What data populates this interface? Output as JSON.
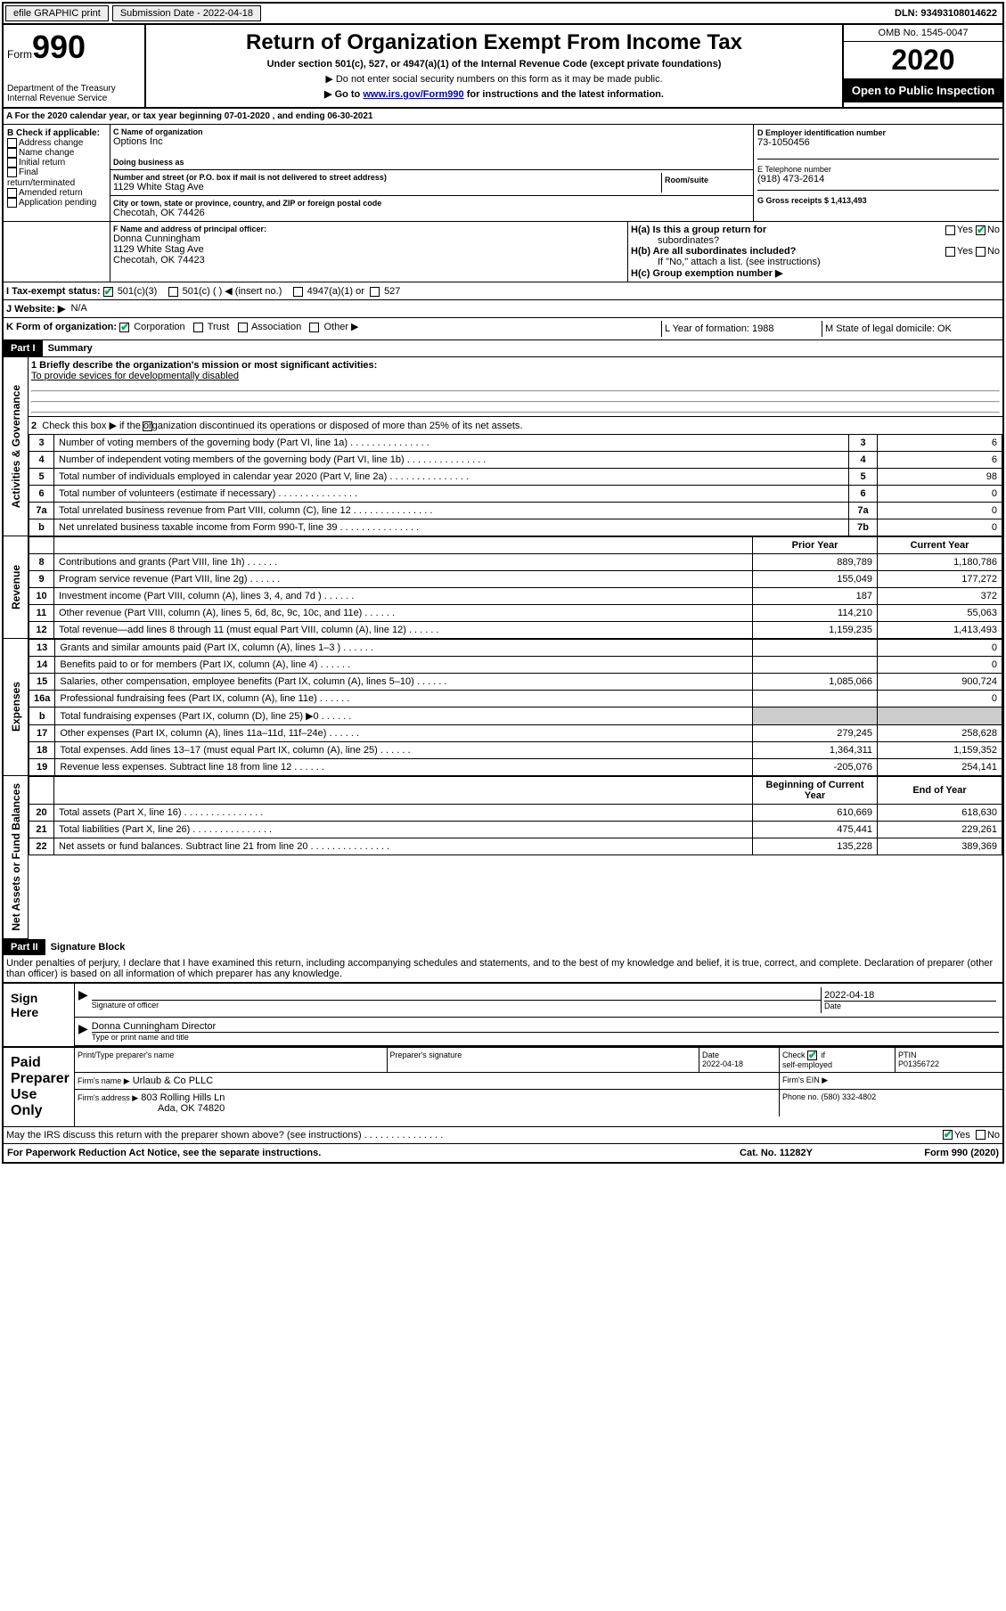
{
  "topbar": {
    "efile": "efile GRAPHIC print",
    "submission_label": "Submission Date - 2022-04-18",
    "dln_label": "DLN: 93493108014622"
  },
  "header": {
    "form_label": "Form",
    "form_number": "990",
    "dept": "Department of the Treasury",
    "irs": "Internal Revenue Service",
    "title": "Return of Organization Exempt From Income Tax",
    "subtitle": "Under section 501(c), 527, or 4947(a)(1) of the Internal Revenue Code (except private foundations)",
    "instr1": "▶ Do not enter social security numbers on this form as it may be made public.",
    "instr2_pre": "▶ Go to ",
    "instr2_link": "www.irs.gov/Form990",
    "instr2_post": " for instructions and the latest information.",
    "omb": "OMB No. 1545-0047",
    "year": "2020",
    "inspection": "Open to Public Inspection"
  },
  "line_a": "For the 2020 calendar year, or tax year beginning 07-01-2020   , and ending 06-30-2021",
  "box_b": {
    "title": "B Check if applicable:",
    "opts": [
      "Address change",
      "Name change",
      "Initial return",
      "Final return/terminated",
      "Amended return",
      "Application pending"
    ]
  },
  "box_c": {
    "name_label": "C Name of organization",
    "name": "Options Inc",
    "dba_label": "Doing business as",
    "addr_label": "Number and street (or P.O. box if mail is not delivered to street address)",
    "room_label": "Room/suite",
    "addr": "1129 White Stag Ave",
    "city_label": "City or town, state or province, country, and ZIP or foreign postal code",
    "city": "Checotah, OK  74426"
  },
  "box_d": {
    "ein_label": "D Employer identification number",
    "ein": "73-1050456",
    "phone_label": "E Telephone number",
    "phone": "(918) 473-2614",
    "gross_label": "G Gross receipts $ 1,413,493"
  },
  "box_f": {
    "label": "F  Name and address of principal officer:",
    "name": "Donna Cunningham",
    "addr1": "1129 White Stag Ave",
    "addr2": "Checotah, OK  74423"
  },
  "box_h": {
    "ha_label": "H(a)  Is this a group return for",
    "ha_label2": "subordinates?",
    "hb_label": "H(b)  Are all subordinates included?",
    "hb_note": "If \"No,\" attach a list. (see instructions)",
    "hc_label": "H(c)  Group exemption number ▶",
    "yes": "Yes",
    "no": "No"
  },
  "line_i": {
    "label": "I  Tax-exempt status:",
    "opt1": "501(c)(3)",
    "opt2": "501(c) (   ) ◀ (insert no.)",
    "opt3": "4947(a)(1) or",
    "opt4": "527"
  },
  "line_j": {
    "label": "J  Website: ▶",
    "val": "N/A"
  },
  "line_k": {
    "label": "K Form of organization:",
    "opts": [
      "Corporation",
      "Trust",
      "Association",
      "Other ▶"
    ],
    "l_label": "L Year of formation: 1988",
    "m_label": "M State of legal domicile: OK"
  },
  "parts": {
    "part1": "Part I",
    "part1_title": "Summary",
    "part2": "Part II",
    "part2_title": "Signature Block"
  },
  "sidebar": {
    "gov": "Activities & Governance",
    "rev": "Revenue",
    "exp": "Expenses",
    "net": "Net Assets or Fund Balances"
  },
  "summary": {
    "l1_label": "1  Briefly describe the organization's mission or most significant activities:",
    "l1_val": "To provide sevices for developmentally disabled",
    "l2": "Check this box ▶         if the organization discontinued its operations or disposed of more than 25% of its net assets.",
    "rows_single": [
      {
        "n": "3",
        "desc": "Number of voting members of the governing body (Part VI, line 1a)",
        "ans": "3",
        "val": "6"
      },
      {
        "n": "4",
        "desc": "Number of independent voting members of the governing body (Part VI, line 1b)",
        "ans": "4",
        "val": "6"
      },
      {
        "n": "5",
        "desc": "Total number of individuals employed in calendar year 2020 (Part V, line 2a)",
        "ans": "5",
        "val": "98"
      },
      {
        "n": "6",
        "desc": "Total number of volunteers (estimate if necessary)",
        "ans": "6",
        "val": "0"
      },
      {
        "n": "7a",
        "desc": "Total unrelated business revenue from Part VIII, column (C), line 12",
        "ans": "7a",
        "val": "0"
      },
      {
        "n": "b",
        "desc": "Net unrelated business taxable income from Form 990-T, line 39",
        "ans": "7b",
        "val": "0"
      }
    ],
    "col_headers": {
      "prior": "Prior Year",
      "current": "Current Year",
      "begin": "Beginning of Current Year",
      "end": "End of Year"
    },
    "rev_rows": [
      {
        "n": "8",
        "desc": "Contributions and grants (Part VIII, line 1h)",
        "c1": "889,789",
        "c2": "1,180,786"
      },
      {
        "n": "9",
        "desc": "Program service revenue (Part VIII, line 2g)",
        "c1": "155,049",
        "c2": "177,272"
      },
      {
        "n": "10",
        "desc": "Investment income (Part VIII, column (A), lines 3, 4, and 7d )",
        "c1": "187",
        "c2": "372"
      },
      {
        "n": "11",
        "desc": "Other revenue (Part VIII, column (A), lines 5, 6d, 8c, 9c, 10c, and 11e)",
        "c1": "114,210",
        "c2": "55,063"
      },
      {
        "n": "12",
        "desc": "Total revenue—add lines 8 through 11 (must equal Part VIII, column (A), line 12)",
        "c1": "1,159,235",
        "c2": "1,413,493"
      }
    ],
    "exp_rows": [
      {
        "n": "13",
        "desc": "Grants and similar amounts paid (Part IX, column (A), lines 1–3 )",
        "c1": "",
        "c2": "0"
      },
      {
        "n": "14",
        "desc": "Benefits paid to or for members (Part IX, column (A), line 4)",
        "c1": "",
        "c2": "0"
      },
      {
        "n": "15",
        "desc": "Salaries, other compensation, employee benefits (Part IX, column (A), lines 5–10)",
        "c1": "1,085,066",
        "c2": "900,724"
      },
      {
        "n": "16a",
        "desc": "Professional fundraising fees (Part IX, column (A), line 11e)",
        "c1": "",
        "c2": "0"
      },
      {
        "n": "b",
        "desc": "Total fundraising expenses (Part IX, column (D), line 25) ▶0",
        "c1": "grey",
        "c2": "grey"
      },
      {
        "n": "17",
        "desc": "Other expenses (Part IX, column (A), lines 11a–11d, 11f–24e)",
        "c1": "279,245",
        "c2": "258,628"
      },
      {
        "n": "18",
        "desc": "Total expenses. Add lines 13–17 (must equal Part IX, column (A), line 25)",
        "c1": "1,364,311",
        "c2": "1,159,352"
      },
      {
        "n": "19",
        "desc": "Revenue less expenses. Subtract line 18 from line 12",
        "c1": "-205,076",
        "c2": "254,141"
      }
    ],
    "net_rows": [
      {
        "n": "20",
        "desc": "Total assets (Part X, line 16)",
        "c1": "610,669",
        "c2": "618,630"
      },
      {
        "n": "21",
        "desc": "Total liabilities (Part X, line 26)",
        "c1": "475,441",
        "c2": "229,261"
      },
      {
        "n": "22",
        "desc": "Net assets or fund balances. Subtract line 21 from line 20",
        "c1": "135,228",
        "c2": "389,369"
      }
    ]
  },
  "sig": {
    "perjury": "Under penalties of perjury, I declare that I have examined this return, including accompanying schedules and statements, and to the best of my knowledge and belief, it is true, correct, and complete. Declaration of preparer (other than officer) is based on all information of which preparer has any knowledge.",
    "sign_here": "Sign Here",
    "sig_officer": "Signature of officer",
    "date_label": "Date",
    "date_val": "2022-04-18",
    "officer_name": "Donna Cunningham  Director",
    "type_name": "Type or print name and title",
    "paid": "Paid Preparer Use Only",
    "prep_name_label": "Print/Type preparer's name",
    "prep_sig_label": "Preparer's signature",
    "prep_date": "Date\n2022-04-18",
    "self_emp": "Check         if self-employed",
    "ptin_label": "PTIN",
    "ptin": "P01356722",
    "firm_name_label": "Firm's name    ▶",
    "firm_name": "Urlaub & Co PLLC",
    "firm_ein_label": "Firm's EIN ▶",
    "firm_addr_label": "Firm's address ▶",
    "firm_addr": "803 Rolling Hills Ln",
    "firm_city": "Ada, OK  74820",
    "firm_phone_label": "Phone no. (580) 332-4802",
    "discuss": "May the IRS discuss this return with the preparer shown above? (see instructions)"
  },
  "footer": {
    "paperwork": "For Paperwork Reduction Act Notice, see the separate instructions.",
    "catno": "Cat. No. 11282Y",
    "formno": "Form 990 (2020)"
  }
}
